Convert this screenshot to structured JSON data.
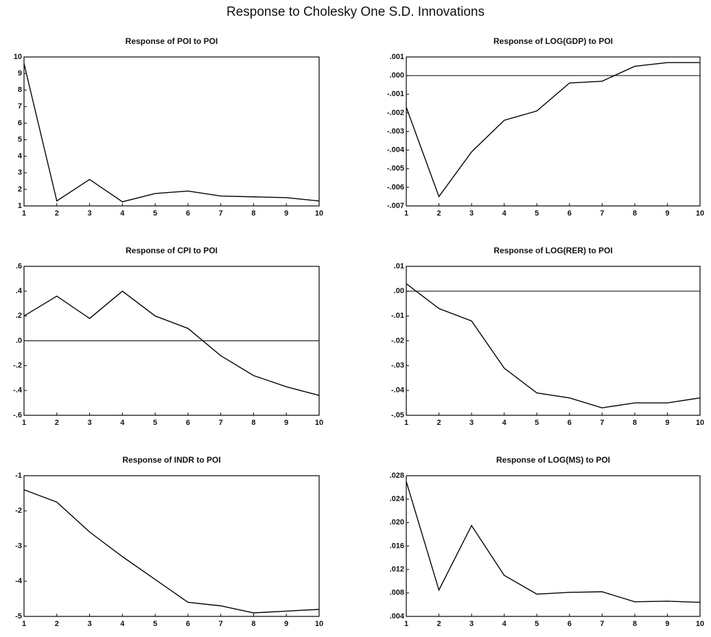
{
  "title": "Response to Cholesky One S.D. Innovations",
  "chart_data": [
    {
      "type": "line",
      "title": "Response of POI to POI",
      "color": "#000000",
      "x": [
        1,
        2,
        3,
        4,
        5,
        6,
        7,
        8,
        9,
        10
      ],
      "xlim": [
        1,
        10
      ],
      "xticks": [
        1,
        2,
        3,
        4,
        5,
        6,
        7,
        8,
        9,
        10
      ],
      "ylim": [
        1,
        10
      ],
      "yticks": [
        1,
        2,
        3,
        4,
        5,
        6,
        7,
        8,
        9,
        10
      ],
      "series": [
        {
          "values": [
            9.6,
            1.3,
            2.6,
            1.25,
            1.75,
            1.9,
            1.6,
            1.55,
            1.5,
            1.3
          ]
        }
      ]
    },
    {
      "type": "line",
      "title": "Response of LOG(GDP) to POI",
      "color": "#000000",
      "x": [
        1,
        2,
        3,
        4,
        5,
        6,
        7,
        8,
        9,
        10
      ],
      "xlim": [
        1,
        10
      ],
      "xticks": [
        1,
        2,
        3,
        4,
        5,
        6,
        7,
        8,
        9,
        10
      ],
      "ylim": [
        -0.007,
        0.001
      ],
      "yticks": [
        {
          "value": 0.001,
          "label": ".001"
        },
        {
          "value": 0,
          "label": ".000"
        },
        {
          "value": -0.001,
          "label": "-.001"
        },
        {
          "value": -0.002,
          "label": "-.002"
        },
        {
          "value": -0.003,
          "label": "-.003"
        },
        {
          "value": -0.004,
          "label": "-.004"
        },
        {
          "value": -0.005,
          "label": "-.005"
        },
        {
          "value": -0.006,
          "label": "-.006"
        },
        {
          "value": -0.007,
          "label": "-.007"
        }
      ],
      "series": [
        {
          "values": [
            -0.0017,
            -0.0065,
            -0.0041,
            -0.0024,
            -0.0019,
            -0.0004,
            -0.0003,
            0.0005,
            0.0007,
            0.0007
          ]
        }
      ]
    },
    {
      "type": "line",
      "title": "Response of CPI to POI",
      "color": "#000000",
      "x": [
        1,
        2,
        3,
        4,
        5,
        6,
        7,
        8,
        9,
        10
      ],
      "xlim": [
        1,
        10
      ],
      "xticks": [
        1,
        2,
        3,
        4,
        5,
        6,
        7,
        8,
        9,
        10
      ],
      "ylim": [
        -0.6,
        0.6
      ],
      "yticks": [
        {
          "value": 0.6,
          "label": ".6"
        },
        {
          "value": 0.4,
          "label": ".4"
        },
        {
          "value": 0.2,
          "label": ".2"
        },
        {
          "value": 0,
          "label": ".0"
        },
        {
          "value": -0.2,
          "label": "-.2"
        },
        {
          "value": -0.4,
          "label": "-.4"
        },
        {
          "value": -0.6,
          "label": "-.6"
        }
      ],
      "series": [
        {
          "values": [
            0.2,
            0.36,
            0.18,
            0.4,
            0.2,
            0.1,
            -0.12,
            -0.28,
            -0.37,
            -0.44
          ]
        }
      ]
    },
    {
      "type": "line",
      "title": "Response of LOG(RER) to POI",
      "color": "#000000",
      "x": [
        1,
        2,
        3,
        4,
        5,
        6,
        7,
        8,
        9,
        10
      ],
      "xlim": [
        1,
        10
      ],
      "xticks": [
        1,
        2,
        3,
        4,
        5,
        6,
        7,
        8,
        9,
        10
      ],
      "ylim": [
        -0.05,
        0.01
      ],
      "yticks": [
        {
          "value": 0.01,
          "label": ".01"
        },
        {
          "value": 0,
          "label": ".00"
        },
        {
          "value": -0.01,
          "label": "-.01"
        },
        {
          "value": -0.02,
          "label": "-.02"
        },
        {
          "value": -0.03,
          "label": "-.03"
        },
        {
          "value": -0.04,
          "label": "-.04"
        },
        {
          "value": -0.05,
          "label": "-.05"
        }
      ],
      "series": [
        {
          "values": [
            0.003,
            -0.007,
            -0.012,
            -0.031,
            -0.041,
            -0.043,
            -0.047,
            -0.045,
            -0.045,
            -0.043
          ]
        }
      ]
    },
    {
      "type": "line",
      "title": "Response of INDR to POI",
      "color": "#000000",
      "x": [
        1,
        2,
        3,
        4,
        5,
        6,
        7,
        8,
        9,
        10
      ],
      "xlim": [
        1,
        10
      ],
      "xticks": [
        1,
        2,
        3,
        4,
        5,
        6,
        7,
        8,
        9,
        10
      ],
      "ylim": [
        -5,
        -1
      ],
      "yticks": [
        -1,
        -2,
        -3,
        -4,
        -5
      ],
      "series": [
        {
          "values": [
            -1.4,
            -1.75,
            -2.6,
            -3.3,
            -3.95,
            -4.6,
            -4.7,
            -4.9,
            -4.85,
            -4.8
          ]
        }
      ]
    },
    {
      "type": "line",
      "title": "Response of LOG(MS) to POI",
      "color": "#000000",
      "x": [
        1,
        2,
        3,
        4,
        5,
        6,
        7,
        8,
        9,
        10
      ],
      "xlim": [
        1,
        10
      ],
      "xticks": [
        1,
        2,
        3,
        4,
        5,
        6,
        7,
        8,
        9,
        10
      ],
      "ylim": [
        0.004,
        0.028
      ],
      "yticks": [
        {
          "value": 0.028,
          "label": ".028"
        },
        {
          "value": 0.024,
          "label": ".024"
        },
        {
          "value": 0.02,
          "label": ".020"
        },
        {
          "value": 0.016,
          "label": ".016"
        },
        {
          "value": 0.012,
          "label": ".012"
        },
        {
          "value": 0.008,
          "label": ".008"
        },
        {
          "value": 0.004,
          "label": ".004"
        }
      ],
      "series": [
        {
          "values": [
            0.027,
            0.0085,
            0.0195,
            0.011,
            0.0078,
            0.0081,
            0.0082,
            0.0065,
            0.0066,
            0.0064
          ]
        }
      ]
    }
  ]
}
